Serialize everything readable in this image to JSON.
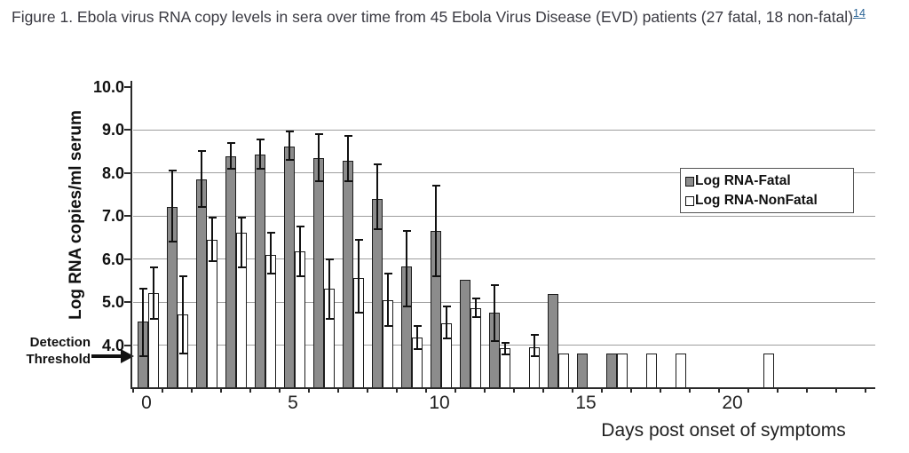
{
  "caption": {
    "text": "Figure 1. Ebola virus RNA copy levels in sera over time from 45 Ebola Virus Disease (EVD) patients (27 fatal, 18 non-fatal)",
    "reference_superscript": "14"
  },
  "chart_data": {
    "type": "bar",
    "title": "",
    "xlabel": "Days post onset of symptoms",
    "ylabel": "Log RNA copies/ml serum",
    "ylim": [
      3.0,
      10.0
    ],
    "yticks": [
      4,
      5,
      6,
      7,
      8,
      9,
      10
    ],
    "xticks": [
      0,
      5,
      10,
      15,
      20
    ],
    "x_range_days": [
      0,
      24
    ],
    "grid": true,
    "legend_position": "right",
    "annotations": {
      "detection_threshold": {
        "label_line1": "Detection",
        "label_line2": "Threshold",
        "value": 3.8
      }
    },
    "series": [
      {
        "id": "fatal",
        "name": "Log RNA-Fatal",
        "color": "#8c8c8c",
        "points": [
          {
            "day": 0,
            "value": 4.55,
            "err_lo": 3.75,
            "err_hi": 5.3
          },
          {
            "day": 1,
            "value": 7.2,
            "err_lo": 6.4,
            "err_hi": 8.05
          },
          {
            "day": 2,
            "value": 7.85,
            "err_lo": 7.2,
            "err_hi": 8.5
          },
          {
            "day": 3,
            "value": 8.38,
            "err_lo": 8.1,
            "err_hi": 8.7
          },
          {
            "day": 4,
            "value": 8.42,
            "err_lo": 8.1,
            "err_hi": 8.78
          },
          {
            "day": 5,
            "value": 8.6,
            "err_lo": 8.3,
            "err_hi": 8.95
          },
          {
            "day": 6,
            "value": 8.35,
            "err_lo": 7.8,
            "err_hi": 8.9
          },
          {
            "day": 7,
            "value": 8.28,
            "err_lo": 7.8,
            "err_hi": 8.85
          },
          {
            "day": 8,
            "value": 7.4,
            "err_lo": 6.7,
            "err_hi": 8.2
          },
          {
            "day": 9,
            "value": 5.82,
            "err_lo": 4.9,
            "err_hi": 6.65
          },
          {
            "day": 10,
            "value": 6.65,
            "err_lo": 5.6,
            "err_hi": 7.7
          },
          {
            "day": 11,
            "value": 5.52
          },
          {
            "day": 12,
            "value": 4.75,
            "err_lo": 4.1,
            "err_hi": 5.4
          },
          {
            "day": 14,
            "value": 5.18
          },
          {
            "day": 15,
            "value": 3.8
          },
          {
            "day": 16,
            "value": 3.8
          }
        ]
      },
      {
        "id": "nonfatal",
        "name": "Log RNA-NonFatal",
        "color": "#ffffff",
        "points": [
          {
            "day": 0,
            "value": 5.2,
            "err_lo": 4.6,
            "err_hi": 5.8
          },
          {
            "day": 1,
            "value": 4.72,
            "err_lo": 3.8,
            "err_hi": 5.6
          },
          {
            "day": 2,
            "value": 6.45,
            "err_lo": 5.95,
            "err_hi": 6.95
          },
          {
            "day": 3,
            "value": 6.6,
            "err_lo": 5.8,
            "err_hi": 6.95
          },
          {
            "day": 4,
            "value": 6.1,
            "err_lo": 5.65,
            "err_hi": 6.6
          },
          {
            "day": 5,
            "value": 6.18,
            "err_lo": 5.6,
            "err_hi": 6.75
          },
          {
            "day": 6,
            "value": 5.3,
            "err_lo": 4.6,
            "err_hi": 6.0
          },
          {
            "day": 7,
            "value": 5.55,
            "err_lo": 4.75,
            "err_hi": 6.45
          },
          {
            "day": 8,
            "value": 5.05,
            "err_lo": 4.45,
            "err_hi": 5.65
          },
          {
            "day": 9,
            "value": 4.18,
            "err_lo": 3.9,
            "err_hi": 4.45
          },
          {
            "day": 10,
            "value": 4.5,
            "err_lo": 4.15,
            "err_hi": 4.9
          },
          {
            "day": 11,
            "value": 4.86,
            "err_lo": 4.65,
            "err_hi": 5.08
          },
          {
            "day": 12,
            "value": 3.92,
            "err_lo": 3.78,
            "err_hi": 4.06
          },
          {
            "day": 13,
            "value": 3.95,
            "err_lo": 3.74,
            "err_hi": 4.24
          },
          {
            "day": 14,
            "value": 3.8
          },
          {
            "day": 16,
            "value": 3.8
          },
          {
            "day": 17,
            "value": 3.8
          },
          {
            "day": 18,
            "value": 3.8
          },
          {
            "day": 21,
            "value": 3.8
          }
        ]
      }
    ]
  }
}
